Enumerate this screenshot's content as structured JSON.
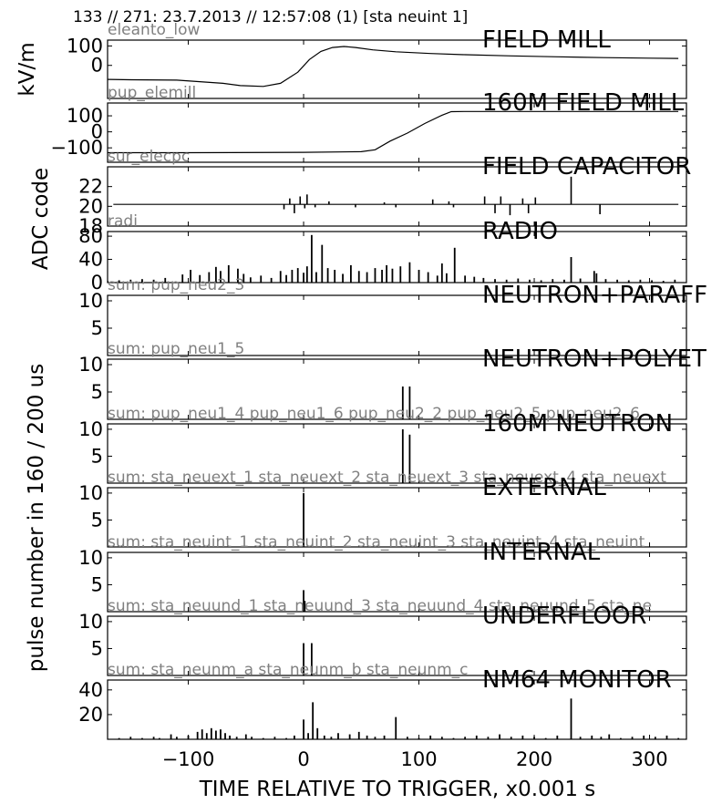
{
  "header": "133 // 271:   23.7.2013 // 12:57:08 (1)  [sta neuint 1]",
  "xlabel": "TIME RELATIVE TO TRIGGER,   x0.001 s",
  "y_labels": [
    "kV/m",
    "ADC code",
    "pulse number in 160 / 200 us"
  ],
  "chart_data": [
    {
      "type": "line",
      "title": "FIELD MILL",
      "label": "eleanto_low",
      "xlim": [
        -170,
        332
      ],
      "ylim": [
        -170,
        130
      ],
      "yticks": [
        0,
        100
      ],
      "xticks": [
        -100,
        0,
        100,
        200,
        300
      ],
      "x": [
        -170,
        -150,
        -110,
        -70,
        -55,
        -35,
        -20,
        -5,
        5,
        15,
        25,
        35,
        45,
        60,
        80,
        110,
        140,
        180,
        220,
        260,
        300,
        325
      ],
      "y": [
        -72,
        -74,
        -76,
        -92,
        -104,
        -108,
        -92,
        -35,
        30,
        72,
        92,
        97,
        92,
        80,
        70,
        61,
        55,
        49,
        44,
        40,
        37,
        36
      ]
    },
    {
      "type": "line",
      "title": "160M FIELD MILL",
      "label": "pup_elemill",
      "xlim": [
        -170,
        332
      ],
      "ylim": [
        -190,
        180
      ],
      "yticks": [
        -100,
        0,
        100
      ],
      "xticks": [
        -100,
        0,
        100,
        200,
        300
      ],
      "x": [
        -170,
        -100,
        0,
        50,
        62,
        75,
        90,
        105,
        120,
        128,
        140,
        200,
        260,
        325
      ],
      "y": [
        -130,
        -130,
        -128,
        -124,
        -112,
        -58,
        -8,
        52,
        104,
        126,
        127,
        127,
        127,
        127
      ]
    },
    {
      "type": "line",
      "title": "FIELD CAPACITOR",
      "label": "sur_elecpc",
      "xlim": [
        -170,
        332
      ],
      "ylim": [
        18,
        24
      ],
      "yticks": [
        18,
        20,
        22
      ],
      "xticks": [
        -100,
        0,
        100,
        200,
        300
      ],
      "baseline": 20.2,
      "x": [
        -17,
        -12,
        -8,
        -3,
        1,
        3,
        10,
        22,
        45,
        70,
        80,
        112,
        126,
        130,
        157,
        166,
        171,
        179,
        190,
        195,
        201,
        232,
        257
      ],
      "y": [
        19.7,
        20.8,
        19.3,
        21.0,
        19.8,
        21.2,
        19.9,
        20.5,
        19.9,
        20.4,
        19.9,
        20.7,
        20.5,
        19.9,
        21.0,
        19.3,
        21.0,
        19.1,
        20.8,
        19.3,
        20.9,
        23.0,
        19.2
      ]
    },
    {
      "type": "bar",
      "title": "RADIO",
      "label": "radi",
      "xlim": [
        -170,
        332
      ],
      "ylim": [
        0,
        88
      ],
      "yticks": [
        0,
        40,
        80
      ],
      "xticks": [
        -100,
        0,
        100,
        200,
        300
      ],
      "x": [
        -170,
        -160,
        -150,
        -140,
        -130,
        -120,
        -105,
        -98,
        -90,
        -82,
        -76,
        -72,
        -65,
        -57,
        -52,
        -46,
        -37,
        -28,
        -20,
        -15,
        -10,
        -5,
        0,
        3,
        7,
        11,
        16,
        21,
        27,
        34,
        41,
        48,
        55,
        62,
        68,
        72,
        77,
        84,
        92,
        100,
        108,
        116,
        120,
        124,
        131,
        140,
        148,
        156,
        166,
        176,
        186,
        196,
        206,
        216,
        226,
        232,
        240,
        252,
        254,
        262,
        272,
        282,
        292,
        302,
        312,
        322
      ],
      "values": [
        3,
        4,
        5,
        6,
        5,
        8,
        14,
        22,
        13,
        18,
        27,
        20,
        30,
        24,
        15,
        9,
        12,
        8,
        20,
        13,
        22,
        25,
        17,
        28,
        82,
        18,
        65,
        25,
        22,
        15,
        30,
        20,
        18,
        25,
        22,
        30,
        24,
        28,
        35,
        22,
        18,
        12,
        33,
        16,
        60,
        12,
        10,
        8,
        6,
        5,
        7,
        5,
        4,
        6,
        5,
        44,
        7,
        20,
        16,
        6,
        5,
        4,
        5,
        4,
        3,
        5
      ]
    },
    {
      "type": "bar",
      "title": "NEUTRON+PARAFF",
      "label": "sum: pup_neu2_3",
      "xlim": [
        -170,
        332
      ],
      "ylim": [
        0,
        11
      ],
      "yticks": [
        5,
        10
      ],
      "xticks": [
        -100,
        0,
        100,
        200,
        300
      ],
      "x": [],
      "values": []
    },
    {
      "type": "bar",
      "title": "NEUTRON+POLYET",
      "label": "sum: pup_neu1_5",
      "xlim": [
        -170,
        332
      ],
      "ylim": [
        0,
        11
      ],
      "yticks": [
        5,
        10
      ],
      "xticks": [
        -100,
        0,
        100,
        200,
        300
      ],
      "x": [
        86,
        92
      ],
      "values": [
        6,
        6
      ]
    },
    {
      "type": "bar",
      "title": "160M NEUTRON",
      "label": "sum: pup_neu1_4 pup_neu1_6 pup_neu2_2 pup_neu2_5 pup_neu2_6",
      "xlim": [
        -170,
        332
      ],
      "ylim": [
        0,
        11
      ],
      "yticks": [
        5,
        10
      ],
      "xticks": [
        -100,
        0,
        100,
        200,
        300
      ],
      "x": [
        86,
        92
      ],
      "values": [
        10,
        9
      ]
    },
    {
      "type": "bar",
      "title": "EXTERNAL",
      "label": "sum: sta_neuext_1 sta_neuext_2 sta_neuext_3 sta_neuext_4 sta_neuext",
      "xlim": [
        -170,
        332
      ],
      "ylim": [
        0,
        11
      ],
      "yticks": [
        5,
        10
      ],
      "xticks": [
        -100,
        0,
        100,
        200,
        300
      ],
      "x": [
        0
      ],
      "values": [
        10
      ]
    },
    {
      "type": "bar",
      "title": "INTERNAL",
      "label": "sum: sta_neuint_1 sta_neuint_2 sta_neuint_3 sta_neuint_4 sta_neuint",
      "xlim": [
        -170,
        332
      ],
      "ylim": [
        0,
        11
      ],
      "yticks": [
        5,
        10
      ],
      "xticks": [
        -100,
        0,
        100,
        200,
        300
      ],
      "x": [
        0,
        1
      ],
      "values": [
        4,
        2
      ]
    },
    {
      "type": "bar",
      "title": "UNDERFLOOR",
      "label": "sum: sta_neuund_1 sta_neuund_3 sta_neuund_4 sta_neuund_5 sta_ne",
      "xlim": [
        -170,
        332
      ],
      "ylim": [
        0,
        11
      ],
      "yticks": [
        5,
        10
      ],
      "xticks": [
        -100,
        0,
        100,
        200,
        300
      ],
      "x": [
        0,
        7
      ],
      "values": [
        6,
        6
      ]
    },
    {
      "type": "bar",
      "title": "NM64 MONITOR",
      "label": "sum: sta_neunm_a sta_neunm_b sta_neunm_c",
      "xlim": [
        -170,
        332
      ],
      "ylim": [
        0,
        48
      ],
      "yticks": [
        20,
        40
      ],
      "xticks": [
        -100,
        0,
        100,
        200,
        300
      ],
      "x": [
        -160,
        -150,
        -140,
        -130,
        -125,
        -115,
        -110,
        -100,
        -92,
        -88,
        -84,
        -80,
        -76,
        -72,
        -68,
        -64,
        -58,
        -50,
        -45,
        -35,
        -25,
        -15,
        -8,
        0,
        4,
        8,
        12,
        18,
        24,
        30,
        40,
        48,
        55,
        62,
        70,
        80,
        90,
        100,
        110,
        120,
        130,
        140,
        150,
        160,
        170,
        180,
        190,
        200,
        210,
        220,
        232,
        240,
        250,
        258,
        265,
        275,
        285,
        295,
        305,
        315,
        325
      ],
      "values": [
        1,
        2,
        1,
        2,
        1,
        4,
        2,
        3,
        6,
        8,
        5,
        9,
        7,
        8,
        5,
        3,
        2,
        4,
        2,
        1,
        2,
        1,
        3,
        16,
        5,
        30,
        9,
        3,
        2,
        5,
        4,
        6,
        3,
        2,
        3,
        18,
        2,
        1,
        3,
        2,
        1,
        2,
        3,
        2,
        4,
        2,
        3,
        2,
        1,
        3,
        33,
        2,
        3,
        2,
        4,
        1,
        2,
        3,
        2,
        3,
        1
      ]
    }
  ]
}
